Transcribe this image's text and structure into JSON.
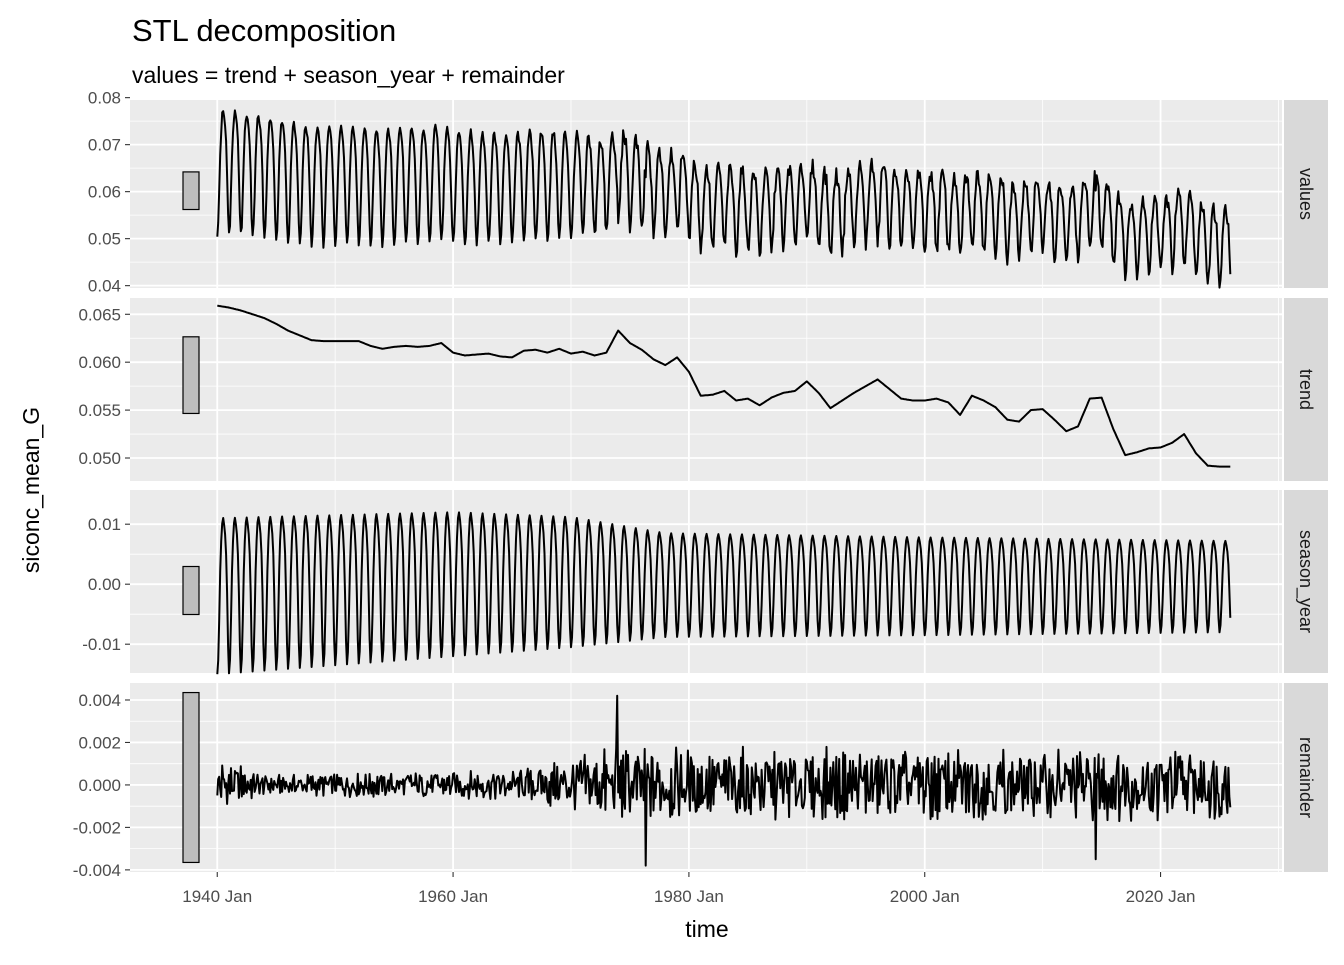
{
  "chart_data": {
    "type": "line",
    "title": "STL decomposition",
    "subtitle": "values = trend + season_year + remainder",
    "xlabel": "time",
    "ylabel": "siconc_mean_G",
    "xlim": [
      1932.6,
      2030.3
    ],
    "x_ticks": [
      1940,
      1960,
      1980,
      2000,
      2020
    ],
    "x_tick_labels": [
      "1940 Jan",
      "1960 Jan",
      "1980 Jan",
      "2000 Jan",
      "2020 Jan"
    ],
    "x_start": 1940.0,
    "x_end": 2025.92,
    "range_bar_span": 0.008,
    "panels": [
      {
        "name": "values",
        "strip": "values",
        "ylim": [
          0.0395,
          0.0795
        ],
        "ticks": [
          0.04,
          0.05,
          0.06,
          0.07,
          0.08
        ],
        "tick_labels": [
          "0.04",
          "0.05",
          "0.06",
          "0.07",
          "0.08"
        ]
      },
      {
        "name": "trend",
        "strip": "trend",
        "ylim": [
          0.0476,
          0.0667
        ],
        "ticks": [
          0.05,
          0.055,
          0.06,
          0.065
        ],
        "tick_labels": [
          "0.050",
          "0.055",
          "0.060",
          "0.065"
        ]
      },
      {
        "name": "season_year",
        "strip": "season_year",
        "ylim": [
          -0.0148,
          0.0157
        ],
        "ticks": [
          -0.01,
          0.0,
          0.01
        ],
        "tick_labels": [
          "-0.01",
          "0.00",
          "0.01"
        ]
      },
      {
        "name": "remainder",
        "strip": "remainder",
        "ylim": [
          -0.0041,
          0.0048
        ],
        "ticks": [
          -0.004,
          -0.002,
          0.0,
          0.002,
          0.004
        ],
        "tick_labels": [
          "-0.004",
          "-0.002",
          "0.000",
          "0.002",
          "0.004"
        ]
      }
    ],
    "trend_years_start": 1940,
    "trend_yearly": [
      0.0659,
      0.0657,
      0.0654,
      0.065,
      0.0646,
      0.064,
      0.0633,
      0.0628,
      0.0623,
      0.0622,
      0.0622,
      0.0622,
      0.0622,
      0.0617,
      0.0614,
      0.0616,
      0.0617,
      0.0616,
      0.0617,
      0.062,
      0.061,
      0.0607,
      0.0608,
      0.0609,
      0.0606,
      0.0605,
      0.0612,
      0.0613,
      0.061,
      0.0614,
      0.0609,
      0.0611,
      0.0607,
      0.061,
      0.0633,
      0.062,
      0.0613,
      0.0603,
      0.0597,
      0.0605,
      0.059,
      0.0565,
      0.0566,
      0.057,
      0.056,
      0.0562,
      0.0555,
      0.0563,
      0.0568,
      0.057,
      0.058,
      0.0568,
      0.0552,
      0.056,
      0.0568,
      0.0575,
      0.0582,
      0.0572,
      0.0562,
      0.056,
      0.056,
      0.0562,
      0.0558,
      0.0545,
      0.0565,
      0.056,
      0.0553,
      0.054,
      0.0538,
      0.055,
      0.0551,
      0.054,
      0.0528,
      0.0533,
      0.0562,
      0.0563,
      0.053,
      0.0503,
      0.0506,
      0.051,
      0.0511,
      0.0516,
      0.0525,
      0.0505,
      0.0492,
      0.0491,
      0.0491
    ],
    "season_monthly_shape": [
      -1.0,
      -0.85,
      -0.4,
      0.2,
      0.65,
      0.92,
      1.0,
      0.9,
      0.75,
      0.45,
      -0.1,
      -0.7
    ],
    "season_amplitude": [
      {
        "from": 1940,
        "max": 0.011,
        "min": -0.015
      },
      {
        "from": 1960,
        "max": 0.012,
        "min": -0.012
      },
      {
        "from": 1970,
        "max": 0.0112,
        "min": -0.0105
      },
      {
        "from": 1978,
        "max": 0.0085,
        "min": -0.0088
      },
      {
        "from": 2000,
        "max": 0.0078,
        "min": -0.0085
      },
      {
        "from": 2026,
        "max": 0.0072,
        "min": -0.008
      }
    ],
    "remainder_amplitude": [
      {
        "from": 1940,
        "amp": 0.0015
      },
      {
        "from": 1944,
        "amp": 0.0005
      },
      {
        "from": 1966,
        "amp": 0.0008
      },
      {
        "from": 1972,
        "amp": 0.0018
      },
      {
        "from": 2026,
        "amp": 0.0018
      }
    ],
    "remainder_extremes": [
      {
        "x": 1973.9,
        "y": 0.0042
      },
      {
        "x": 1976.3,
        "y": -0.0038
      },
      {
        "x": 2014.5,
        "y": -0.0035
      }
    ]
  }
}
